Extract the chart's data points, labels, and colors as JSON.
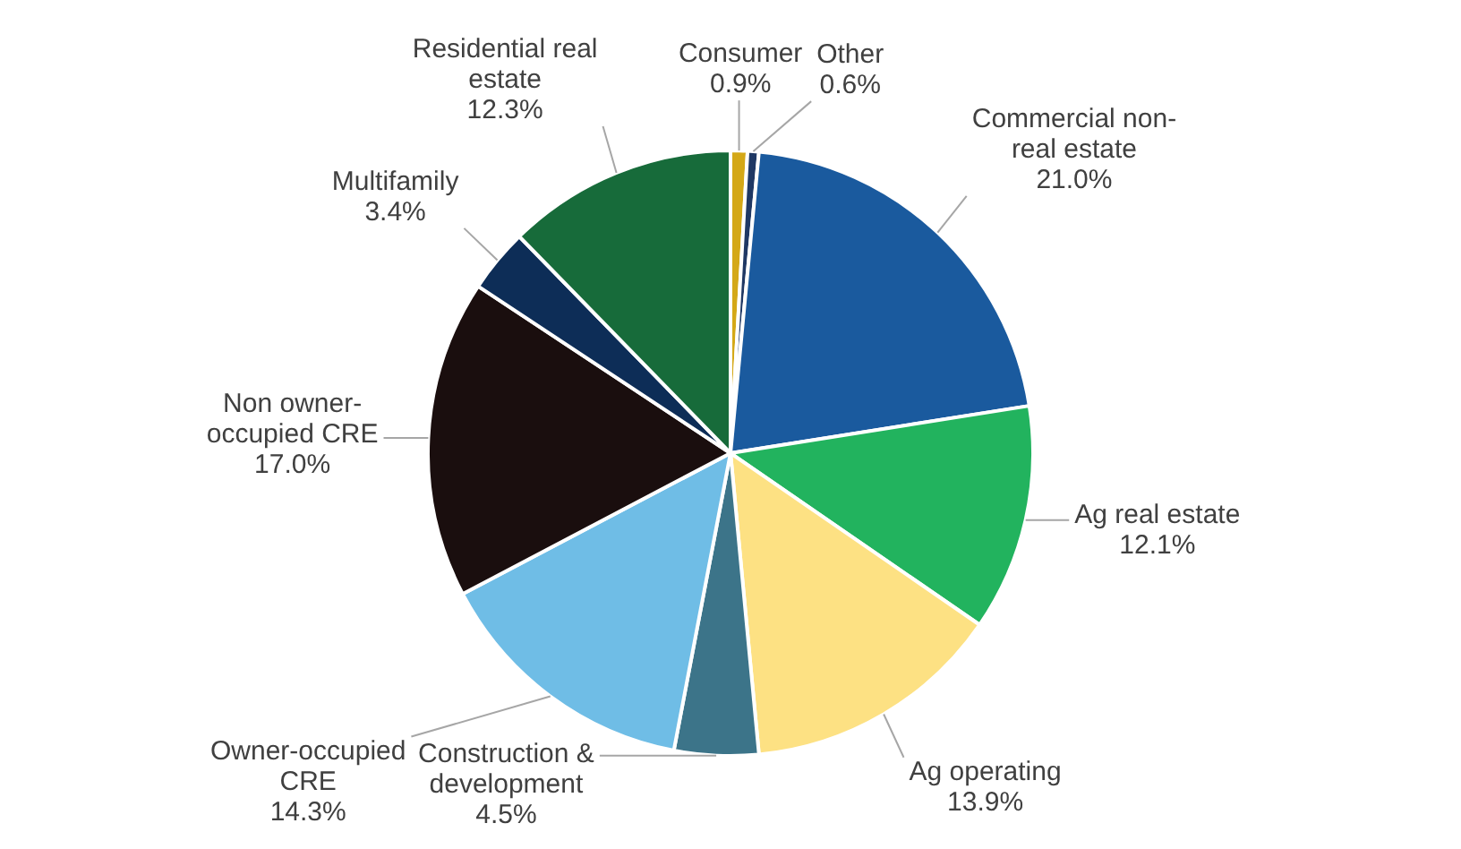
{
  "chart_data": {
    "type": "pie",
    "categories": [
      "Consumer",
      "Other",
      "Commercial non-real estate",
      "Ag real estate",
      "Ag operating",
      "Construction & development",
      "Owner-occupied CRE",
      "Non owner-occupied CRE",
      "Multifamily",
      "Residential real estate"
    ],
    "values": [
      0.9,
      0.6,
      21.0,
      12.1,
      13.9,
      4.5,
      14.3,
      17.0,
      3.4,
      12.3
    ],
    "colors": [
      "#d4a817",
      "#1f3864",
      "#1a5a9e",
      "#22b35e",
      "#fde183",
      "#3c7489",
      "#6fbde6",
      "#1a0e0e",
      "#0d2d57",
      "#176b3a"
    ],
    "value_labels": [
      "0.9%",
      "0.6%",
      "21.0%",
      "12.1%",
      "13.9%",
      "4.5%",
      "14.3%",
      "17.0%",
      "3.4%",
      "12.3%"
    ]
  }
}
